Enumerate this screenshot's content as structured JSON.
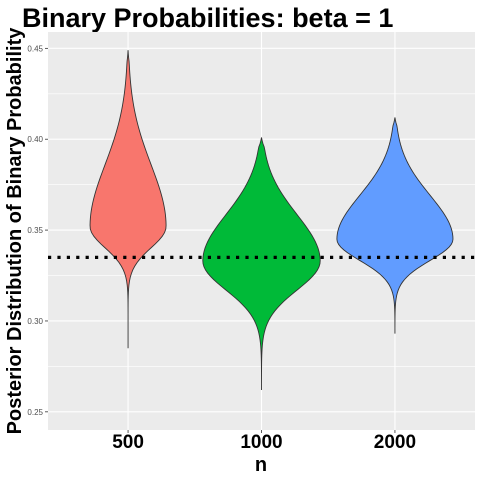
{
  "chart_data": {
    "type": "violin",
    "title": "Binary Probabilities: beta = 1",
    "xlabel": "n",
    "ylabel": "Posterior Distribution of Binary Probability",
    "categories": [
      "500",
      "1000",
      "2000"
    ],
    "y_ticks": [
      "0.25",
      "0.30",
      "0.35",
      "0.40",
      "0.45"
    ],
    "ylim": [
      0.24,
      0.459
    ],
    "grid": true,
    "reference_line": {
      "y": 0.335,
      "style": "dotted",
      "color": "#000000"
    },
    "series": [
      {
        "category": "500",
        "color": "#F8766D",
        "min": 0.285,
        "max": 0.449,
        "mode": 0.352,
        "half_width": 0.285,
        "skew_above": 0.7,
        "skew_below": 0.35
      },
      {
        "category": "1000",
        "color": "#00BA38",
        "min": 0.262,
        "max": 0.401,
        "mode": 0.333,
        "half_width": 0.44,
        "skew_above": 0.75,
        "skew_below": 0.45
      },
      {
        "category": "2000",
        "color": "#619CFF",
        "min": 0.293,
        "max": 0.412,
        "mode": 0.345,
        "half_width": 0.435,
        "skew_above": 0.72,
        "skew_below": 0.45
      }
    ]
  }
}
